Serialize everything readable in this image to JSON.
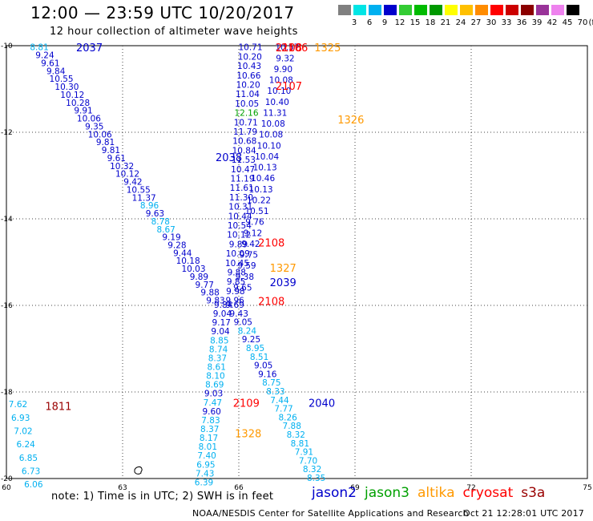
{
  "header": {
    "title": "12:00 — 23:59 UTC 10/20/2017",
    "subtitle": "12 hour collection of altimeter wave heights"
  },
  "color_scale": {
    "unit": "(ft)",
    "labels": [
      "3",
      "6",
      "9",
      "12",
      "15",
      "18",
      "21",
      "24",
      "27",
      "30",
      "33",
      "36",
      "39",
      "42",
      "45",
      "70"
    ],
    "colors": [
      "#808080",
      "#00e5e5",
      "#00b0f0",
      "#0000cc",
      "#33cc33",
      "#00bb00",
      "#009900",
      "#ffff00",
      "#ffc000",
      "#ff8c00",
      "#ff0000",
      "#cc0000",
      "#8b0000",
      "#993399",
      "#ee82ee",
      "#000000"
    ]
  },
  "axes": {
    "x_ticks": [
      "60",
      "63",
      "66",
      "69",
      "72",
      "75"
    ],
    "y_ticks": [
      "-10",
      "-12",
      "-14",
      "-16",
      "-18",
      "-20"
    ]
  },
  "sat_colors": {
    "jason2": "#0000cc",
    "jason3": "#00a000",
    "altika": "#ff9900",
    "cryosat": "#ff0000",
    "s3a": "#990000",
    "low": "#00b0f0",
    "gray": "#999999"
  },
  "chart_data": {
    "type": "scatter",
    "x_range": [
      60,
      75
    ],
    "y_range": [
      -20,
      -10
    ],
    "tracks": [
      {
        "sat": "jason2",
        "pass_labels": [
          {
            "text": "2037",
            "x": 61.8,
            "y": -10.04
          },
          {
            "text": "2038",
            "x": 65.4,
            "y": -12.57
          }
        ],
        "start": [
          60.85,
          -10.05
        ],
        "end": [
          65.4,
          -15.9
        ],
        "values": [
          "8.81",
          "9.24",
          "9.61",
          "9.84",
          "10.55",
          "10.30",
          "10.12",
          "10.28",
          "9.91",
          "10.06",
          "9.35",
          "10.06",
          "9.81",
          "9.81",
          "9.61",
          "10.32",
          "10.12",
          "9.42",
          "10.55",
          "11.37",
          "8.96",
          "9.63",
          "8.78",
          "8.67",
          "9.19",
          "9.28",
          "9.44",
          "10.18",
          "10.03",
          "9.89",
          "9.77",
          "9.88",
          "9.83"
        ]
      },
      {
        "sat": "jason2",
        "pass_labels": [
          {
            "text": "2039",
            "x": 66.8,
            "y": -15.46
          }
        ],
        "start": [
          66.3,
          -10.05
        ],
        "end": [
          65.9,
          -15.9
        ],
        "values": [
          "10.71",
          "10.20",
          "10.43",
          "10.66",
          "10.20",
          "11.04",
          "10.05",
          "12.16",
          "10.71",
          "11.79",
          "10.68",
          "10.84",
          "11.53",
          "10.47",
          "11.19",
          "11.61",
          "11.30",
          "10.31",
          "10.44",
          "10.54",
          "10.12",
          "9.89",
          "10.09",
          "10.45",
          "9.88",
          "9.85",
          "9.98",
          "9.96"
        ]
      },
      {
        "sat": "jason2",
        "pass_labels": [],
        "start": [
          67.25,
          -10.05
        ],
        "end": [
          66.1,
          -15.6
        ],
        "values": [
          "10.57",
          "9.32",
          "9.90",
          "10.08",
          "10.10",
          "10.40",
          "11.31",
          "10.08",
          "10.08",
          "10.10",
          "10.04",
          "10.13",
          "10.46",
          "10.13",
          "10.22",
          "10.51",
          "9.76",
          "9.12",
          "9.42",
          "9.75",
          "9.59",
          "9.38",
          "9.65"
        ]
      },
      {
        "sat": "jason2",
        "pass_labels": [
          {
            "text": "2040",
            "x": 67.8,
            "y": -18.25
          }
        ],
        "start": [
          65.9,
          -16.0
        ],
        "end": [
          68.0,
          -20.0
        ],
        "values": [
          "9.69",
          "9.43",
          "9.05",
          "8.24",
          "9.25",
          "8.95",
          "8.51",
          "9.05",
          "9.16",
          "8.75",
          "8.33",
          "7.44",
          "7.77",
          "8.26",
          "7.88",
          "8.32",
          "8.81",
          "7.91",
          "7.70",
          "8.32",
          "8.35"
        ]
      },
      {
        "sat": "jason2",
        "pass_labels": [],
        "start": [
          65.6,
          -16.0
        ],
        "end": [
          65.1,
          -20.1
        ],
        "values": [
          "9.84",
          "9.04",
          "9.17",
          "9.04",
          "8.85",
          "8.74",
          "8.37",
          "8.61",
          "8.10",
          "8.69",
          "9.03",
          "7.47",
          "9.60",
          "7.83",
          "8.37",
          "8.17",
          "8.01",
          "7.40",
          "6.95",
          "7.43",
          "6.39"
        ]
      },
      {
        "sat": "low",
        "pass_labels": [],
        "start": [
          60.3,
          -18.3
        ],
        "end": [
          60.7,
          -20.15
        ],
        "values": [
          "7.62",
          "6.93",
          "7.02",
          "6.24",
          "6.85",
          "6.73",
          "6.06"
        ]
      }
    ],
    "markers": [
      {
        "text": "2108",
        "sat": "cryosat",
        "x": 66.95,
        "y": -10.04
      },
      {
        "text": "2106",
        "sat": "cryosat",
        "x": 67.1,
        "y": -10.04
      },
      {
        "text": "1325",
        "sat": "altika",
        "x": 67.95,
        "y": -10.04
      },
      {
        "text": "2107",
        "sat": "cryosat",
        "x": 66.95,
        "y": -10.93
      },
      {
        "text": "1326",
        "sat": "altika",
        "x": 68.55,
        "y": -11.7
      },
      {
        "text": "2108",
        "sat": "cryosat",
        "x": 66.5,
        "y": -14.55
      },
      {
        "text": "1327",
        "sat": "altika",
        "x": 66.8,
        "y": -15.13
      },
      {
        "text": "2108",
        "sat": "cryosat",
        "x": 66.5,
        "y": -15.9
      },
      {
        "text": "2109",
        "sat": "cryosat",
        "x": 65.85,
        "y": -18.25
      },
      {
        "text": "1328",
        "sat": "altika",
        "x": 65.9,
        "y": -18.95
      },
      {
        "text": "1811",
        "sat": "s3a",
        "x": 61.0,
        "y": -18.32
      }
    ]
  },
  "footnote": "note: 1) Time is in UTC; 2) SWH is in feet",
  "legend": [
    {
      "key": "jason2",
      "label": "jason2"
    },
    {
      "key": "jason3",
      "label": "jason3"
    },
    {
      "key": "altika",
      "label": "altika"
    },
    {
      "key": "cryosat",
      "label": "cryosat"
    },
    {
      "key": "s3a",
      "label": "s3a"
    }
  ],
  "credit": "NOAA/NESDIS Center for Satellite Applications and Research",
  "timestamp": "Oct 21 12:28:01 UTC 2017"
}
